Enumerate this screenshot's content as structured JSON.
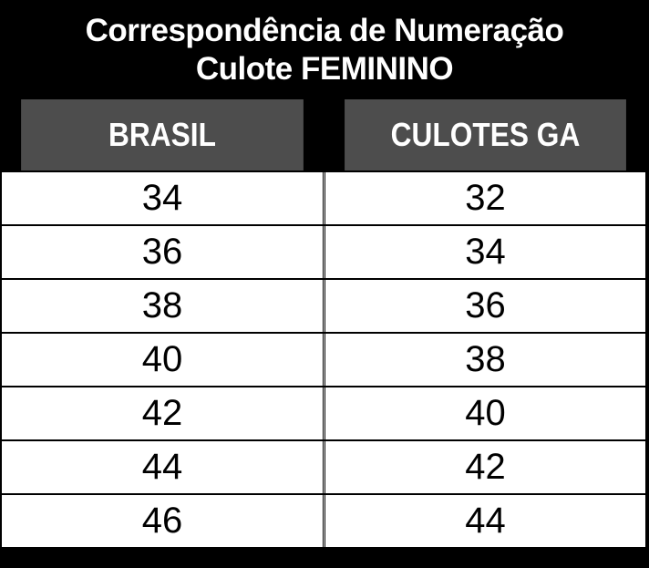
{
  "title": {
    "line1": "Correspondência de Numeração",
    "line2": "Culote FEMININO"
  },
  "table": {
    "headers": [
      "BRASIL",
      "CULOTES GA"
    ],
    "rows": [
      [
        "34",
        "32"
      ],
      [
        "36",
        "34"
      ],
      [
        "38",
        "36"
      ],
      [
        "40",
        "38"
      ],
      [
        "42",
        "40"
      ],
      [
        "44",
        "42"
      ],
      [
        "46",
        "44"
      ]
    ]
  },
  "colors": {
    "title_bg": "#000000",
    "header_bg": "#4d4d4d",
    "header_text": "#ffffff"
  }
}
